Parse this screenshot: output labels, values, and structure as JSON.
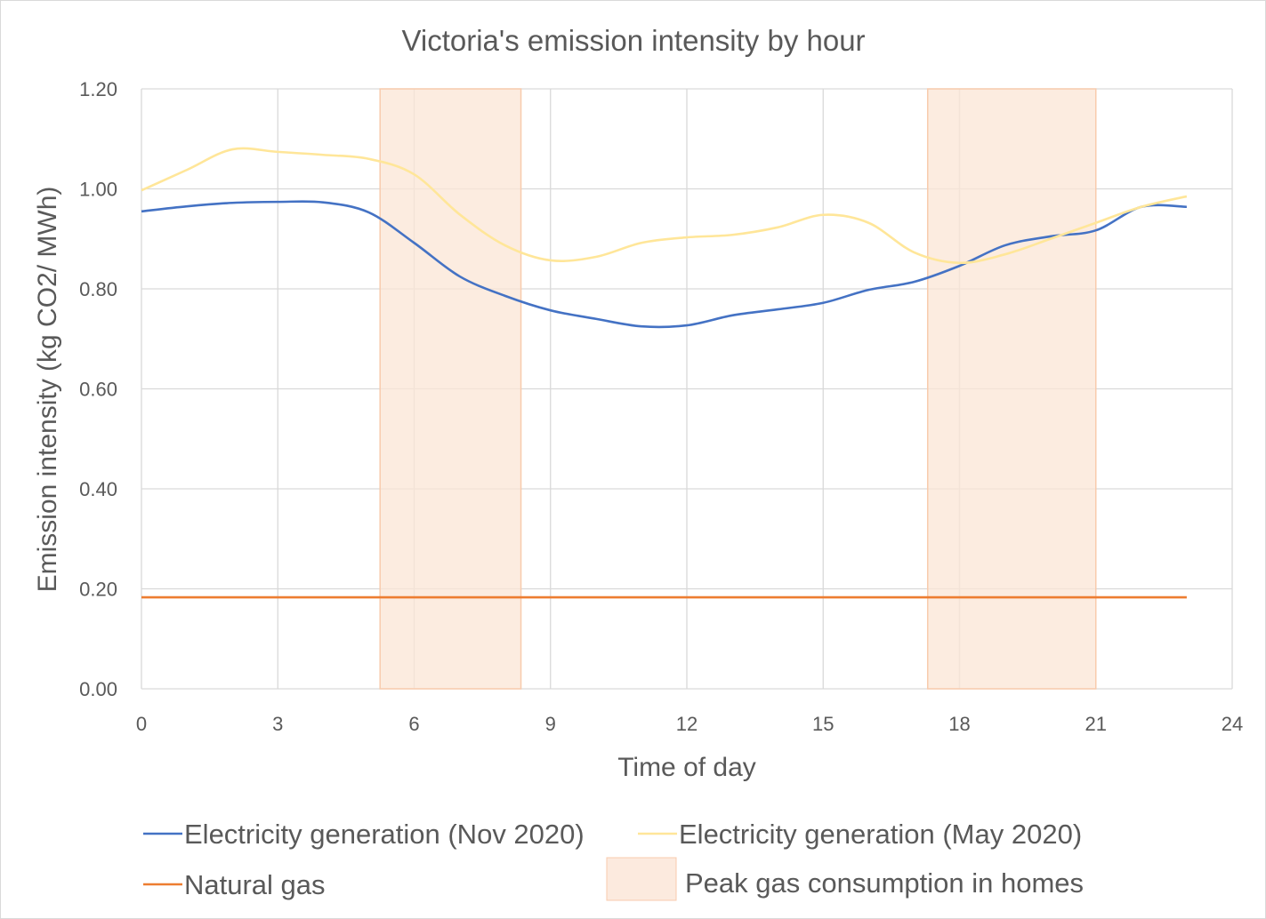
{
  "chart_data": {
    "type": "line",
    "title": "Victoria's emission intensity by hour",
    "xlabel": "Time of day",
    "ylabel": "Emission intensity (kg CO2/ MWh)",
    "xlim": [
      0,
      24
    ],
    "ylim": [
      0,
      1.2
    ],
    "xticks": [
      0,
      3,
      6,
      9,
      12,
      15,
      18,
      21,
      24
    ],
    "yticks": [
      "0.00",
      "0.20",
      "0.40",
      "0.60",
      "0.80",
      "1.00",
      "1.20"
    ],
    "grid": true,
    "legend_position": "bottom",
    "x": [
      0,
      1,
      2,
      3,
      4,
      5,
      6,
      7,
      8,
      9,
      10,
      11,
      12,
      13,
      14,
      15,
      16,
      17,
      18,
      19,
      20,
      21,
      22,
      23
    ],
    "series": [
      {
        "name": "Electricity generation (Nov 2020)",
        "color": "#4472C4",
        "values": [
          0.955,
          0.965,
          0.972,
          0.974,
          0.973,
          0.953,
          0.892,
          0.825,
          0.786,
          0.757,
          0.74,
          0.725,
          0.727,
          0.747,
          0.759,
          0.772,
          0.798,
          0.814,
          0.846,
          0.887,
          0.905,
          0.917,
          0.964,
          0.964
        ]
      },
      {
        "name": "Electricity generation (May 2020)",
        "color": "#FFE699",
        "values": [
          0.997,
          1.038,
          1.079,
          1.074,
          1.068,
          1.06,
          1.029,
          0.949,
          0.887,
          0.857,
          0.864,
          0.892,
          0.903,
          0.908,
          0.923,
          0.948,
          0.932,
          0.873,
          0.852,
          0.869,
          0.9,
          0.932,
          0.964,
          0.985
        ]
      },
      {
        "name": "Natural gas",
        "color": "#ED7D31",
        "values": [
          0.183,
          0.183,
          0.183,
          0.183,
          0.183,
          0.183,
          0.183,
          0.183,
          0.183,
          0.183,
          0.183,
          0.183,
          0.183,
          0.183,
          0.183,
          0.183,
          0.183,
          0.183,
          0.183,
          0.183,
          0.183,
          0.183,
          0.183,
          0.183
        ]
      }
    ],
    "shaded_regions": {
      "name": "Peak gas consumption in homes",
      "color": "#FBE5D6",
      "border": "#F8CBAD",
      "ranges": [
        [
          5.25,
          8.35
        ],
        [
          17.3,
          21.0
        ]
      ],
      "y_top": 1.2
    }
  }
}
